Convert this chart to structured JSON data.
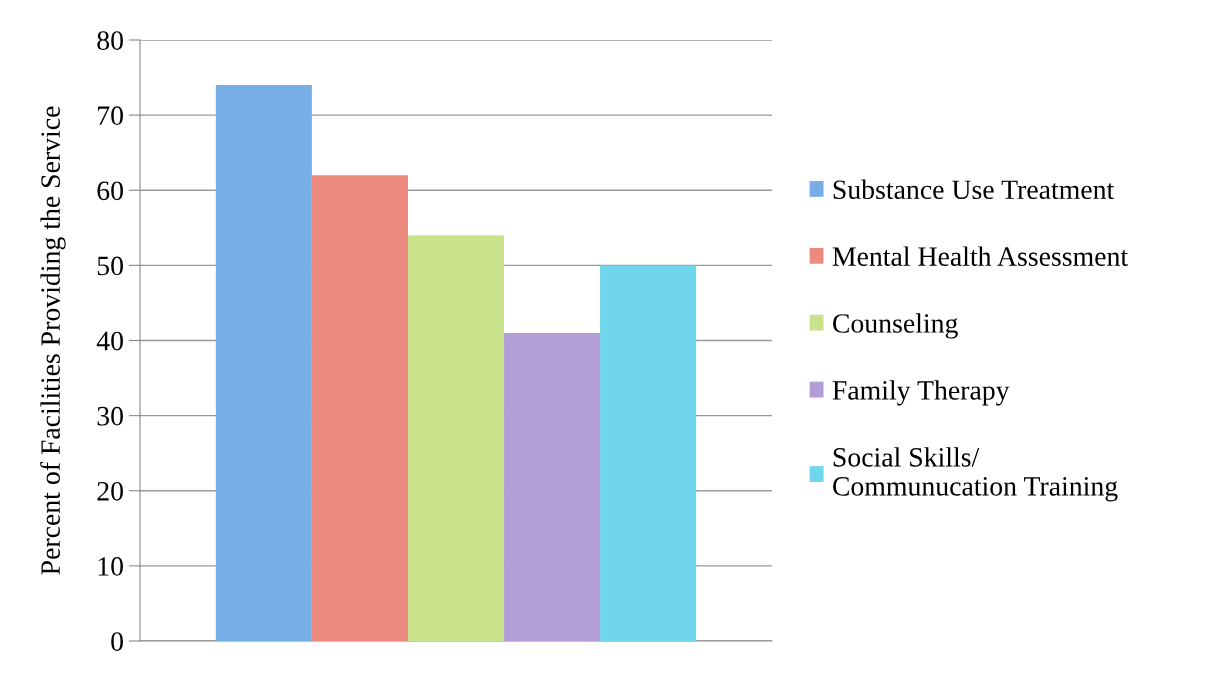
{
  "chart_data": {
    "type": "bar",
    "ylabel": "Percent of Facilities Providing the Service",
    "categories": [
      null
    ],
    "series": [
      {
        "name": "Substance Use Treatment",
        "color": "#78aee6",
        "values": [
          74
        ]
      },
      {
        "name": "Mental Health Assessment",
        "color": "#ec8a80",
        "values": [
          62
        ]
      },
      {
        "name": "Counseling",
        "color": "#c9e38c",
        "values": [
          54
        ]
      },
      {
        "name": "Family Therapy",
        "color": "#b39fd6",
        "values": [
          41
        ]
      },
      {
        "name": "Social Skills/\nCommunucation Training",
        "color": "#6fd6ec",
        "values": [
          50
        ]
      }
    ],
    "ylim": [
      0,
      80
    ],
    "yticks": [
      0,
      10,
      20,
      30,
      40,
      50,
      60,
      70,
      80
    ],
    "grid": "y",
    "legend": "right"
  }
}
